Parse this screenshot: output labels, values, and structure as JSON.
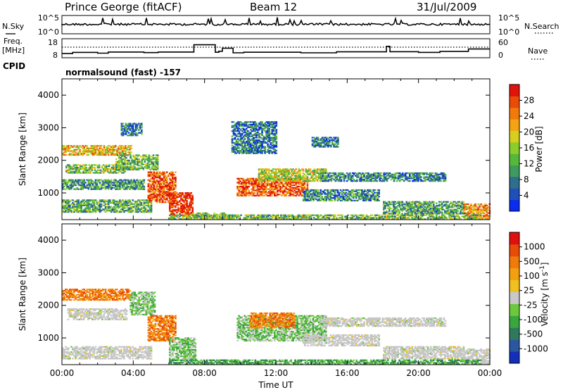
{
  "header": {
    "station": "Prince George (fitACF)",
    "beam": "Beam 12",
    "date": "31/Jul/2009",
    "program": "normalsound (fast) -157"
  },
  "chart_data": [
    {
      "type": "line",
      "panel": "noise",
      "left_label": "N.Sky",
      "right_label": "N.Search",
      "left_ticks": [
        "10^5",
        "10^0"
      ],
      "right_ticks": [
        "10^5",
        "10^0"
      ],
      "note": "solid = N.Sky, dotted = N.Search"
    },
    {
      "type": "line",
      "panel": "frequency",
      "left_label": "Freq.",
      "left_unit": "[MHz]",
      "cpid_label": "CPID",
      "right_label": "Nave",
      "left_ticks": [
        18,
        8
      ],
      "right_ticks": [
        60,
        0
      ],
      "freq_steps": [
        {
          "t": 0.0,
          "f": 10.2
        },
        {
          "t": 0.6,
          "f": 10.8
        },
        {
          "t": 2.0,
          "f": 10.4
        },
        {
          "t": 2.6,
          "f": 11.0
        },
        {
          "t": 4.6,
          "f": 10.7
        },
        {
          "t": 5.4,
          "f": 11.0
        },
        {
          "t": 7.4,
          "f": 14.8
        },
        {
          "t": 8.6,
          "f": 10.9
        },
        {
          "t": 8.8,
          "f": 11.4
        },
        {
          "t": 9.0,
          "f": 13.0
        },
        {
          "t": 9.6,
          "f": 10.6
        },
        {
          "t": 10.2,
          "f": 10.9
        },
        {
          "t": 13.4,
          "f": 10.6
        },
        {
          "t": 15.4,
          "f": 11.1
        },
        {
          "t": 18.2,
          "f": 14.0
        },
        {
          "t": 18.4,
          "f": 11.2
        },
        {
          "t": 20.0,
          "f": 10.8
        },
        {
          "t": 21.2,
          "f": 11.3
        },
        {
          "t": 22.8,
          "f": 12.6
        },
        {
          "t": 24.0,
          "f": 12.6
        }
      ],
      "nave_level": 13.2
    },
    {
      "type": "heatmap",
      "panel": "power",
      "xlabel": "",
      "ylabel": "Slant Range [km]",
      "x_range_hours": [
        0,
        24
      ],
      "ylim": [
        180,
        4500
      ],
      "y_ticks": [
        1000,
        2000,
        3000,
        4000
      ],
      "colorbar": {
        "label": "Power [dB]",
        "ticks": [
          4,
          8,
          12,
          16,
          20,
          24,
          28
        ],
        "colors": [
          "#0a2cf0",
          "#1f4fb8",
          "#2f6e8c",
          "#3e9a5e",
          "#56b83a",
          "#8ccc2c",
          "#d6cf1e",
          "#f2a412",
          "#f27a0a",
          "#ea4b08",
          "#e0140a"
        ]
      },
      "regions": [
        {
          "t0": 0.0,
          "t1": 3.9,
          "r0": 2150,
          "r1": 2450,
          "p": 0.66
        },
        {
          "t0": 0.2,
          "t1": 3.5,
          "r0": 1600,
          "r1": 1850,
          "p": 0.45
        },
        {
          "t0": 0.0,
          "t1": 4.6,
          "r0": 1100,
          "r1": 1400,
          "p": 0.32
        },
        {
          "t0": 0.0,
          "t1": 5.0,
          "r0": 400,
          "r1": 780,
          "p": 0.38
        },
        {
          "t0": 3.3,
          "t1": 4.5,
          "r0": 2750,
          "r1": 3150,
          "p": 0.25
        },
        {
          "t0": 3.0,
          "t1": 5.4,
          "r0": 1700,
          "r1": 2150,
          "p": 0.42
        },
        {
          "t0": 4.8,
          "t1": 6.4,
          "r0": 700,
          "r1": 1650,
          "p": 0.85
        },
        {
          "t0": 6.0,
          "t1": 7.3,
          "r0": 300,
          "r1": 1000,
          "p": 0.93
        },
        {
          "t0": 7.3,
          "t1": 9.2,
          "r0": 200,
          "r1": 400,
          "p": 0.48
        },
        {
          "t0": 9.8,
          "t1": 13.8,
          "r0": 900,
          "r1": 1450,
          "p": 0.86
        },
        {
          "t0": 11.0,
          "t1": 14.8,
          "r0": 1350,
          "r1": 1750,
          "p": 0.52
        },
        {
          "t0": 13.5,
          "t1": 17.8,
          "r0": 750,
          "r1": 1100,
          "p": 0.28
        },
        {
          "t0": 14.5,
          "t1": 21.5,
          "r0": 1350,
          "r1": 1600,
          "p": 0.26
        },
        {
          "t0": 18.0,
          "t1": 22.5,
          "r0": 350,
          "r1": 750,
          "p": 0.36
        },
        {
          "t0": 22.5,
          "t1": 24.0,
          "r0": 200,
          "r1": 650,
          "p": 0.74
        },
        {
          "t0": 9.5,
          "t1": 12.0,
          "r0": 2200,
          "r1": 3200,
          "p": 0.22
        },
        {
          "t0": 14.0,
          "t1": 15.5,
          "r0": 2400,
          "r1": 2700,
          "p": 0.22
        },
        {
          "t0": 6.0,
          "t1": 23.5,
          "r0": 180,
          "r1": 330,
          "p": 0.44
        }
      ]
    },
    {
      "type": "heatmap",
      "panel": "velocity",
      "xlabel": "Time UT",
      "ylabel": "Slant Range [km]",
      "x_range_hours": [
        0,
        24
      ],
      "x_tick_labels": [
        "00:00",
        "04:00",
        "08:00",
        "12:00",
        "16:00",
        "20:00",
        "00:00"
      ],
      "ylim": [
        180,
        4500
      ],
      "y_ticks": [
        1000,
        2000,
        3000,
        4000
      ],
      "colorbar": {
        "label": "Velocity [m s^-1]",
        "ticks": [
          "1000",
          "500",
          "100",
          "25",
          "-25",
          "-100",
          "-500",
          "-1000"
        ],
        "colors": [
          "#1530b8",
          "#2a58a0",
          "#2f7a5e",
          "#39a63e",
          "#6cc83c",
          "#c8c8c8",
          "#f0c020",
          "#f3a010",
          "#f07a0a",
          "#e84a08",
          "#e01010"
        ],
        "gray": "#c6c6c6"
      },
      "regions": [
        {
          "t0": 0.0,
          "t1": 3.8,
          "r0": 2150,
          "r1": 2500,
          "k": 8
        },
        {
          "t0": 3.8,
          "t1": 5.2,
          "r0": 1700,
          "r1": 2400,
          "k": 4
        },
        {
          "t0": 0.3,
          "t1": 3.6,
          "r0": 1550,
          "r1": 1900,
          "k": 5
        },
        {
          "t0": 0.0,
          "t1": 5.0,
          "r0": 350,
          "r1": 750,
          "k": 5
        },
        {
          "t0": 4.8,
          "t1": 6.4,
          "r0": 900,
          "r1": 1700,
          "k": 8
        },
        {
          "t0": 6.0,
          "t1": 7.5,
          "r0": 300,
          "r1": 1000,
          "k": 4
        },
        {
          "t0": 9.8,
          "t1": 14.8,
          "r0": 900,
          "r1": 1700,
          "k": 4
        },
        {
          "t0": 10.5,
          "t1": 13.0,
          "r0": 1300,
          "r1": 1750,
          "k": 8
        },
        {
          "t0": 13.5,
          "t1": 17.8,
          "r0": 750,
          "r1": 1100,
          "k": 5
        },
        {
          "t0": 14.5,
          "t1": 21.5,
          "r0": 1350,
          "r1": 1600,
          "k": 5
        },
        {
          "t0": 18.0,
          "t1": 22.5,
          "r0": 350,
          "r1": 750,
          "k": 5
        },
        {
          "t0": 22.5,
          "t1": 24.0,
          "r0": 200,
          "r1": 650,
          "k": 5
        },
        {
          "t0": 6.0,
          "t1": 23.5,
          "r0": 180,
          "r1": 330,
          "k": 3
        }
      ]
    }
  ]
}
